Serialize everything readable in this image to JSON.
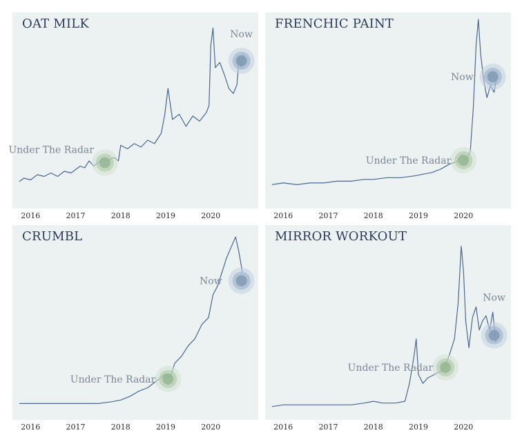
{
  "chart_data": [
    {
      "type": "line",
      "title": "OAT MILK",
      "x_ticks": [
        "2016",
        "2017",
        "2018",
        "2019",
        "2020"
      ],
      "xlim": [
        2015.75,
        2020.9
      ],
      "ylim": [
        0,
        100
      ],
      "color": "#4a6591",
      "series": [
        {
          "values": [
            [
              2015.75,
              6
            ],
            [
              2015.85,
              8
            ],
            [
              2016.0,
              7
            ],
            [
              2016.15,
              10
            ],
            [
              2016.3,
              9
            ],
            [
              2016.45,
              11
            ],
            [
              2016.6,
              9
            ],
            [
              2016.75,
              12
            ],
            [
              2016.9,
              11
            ],
            [
              2017.0,
              13
            ],
            [
              2017.1,
              15
            ],
            [
              2017.2,
              14
            ],
            [
              2017.3,
              18
            ],
            [
              2017.4,
              15
            ],
            [
              2017.5,
              17
            ],
            [
              2017.6,
              19
            ],
            [
              2017.7,
              18
            ],
            [
              2017.85,
              20
            ],
            [
              2017.95,
              18
            ],
            [
              2018.0,
              27
            ],
            [
              2018.15,
              25
            ],
            [
              2018.3,
              28
            ],
            [
              2018.45,
              26
            ],
            [
              2018.6,
              30
            ],
            [
              2018.75,
              28
            ],
            [
              2018.9,
              34
            ],
            [
              2018.98,
              45
            ],
            [
              2019.05,
              60
            ],
            [
              2019.15,
              42
            ],
            [
              2019.3,
              45
            ],
            [
              2019.45,
              38
            ],
            [
              2019.6,
              44
            ],
            [
              2019.75,
              41
            ],
            [
              2019.9,
              46
            ],
            [
              2019.96,
              50
            ],
            [
              2020.0,
              85
            ],
            [
              2020.05,
              95
            ],
            [
              2020.1,
              72
            ],
            [
              2020.2,
              75
            ],
            [
              2020.3,
              68
            ],
            [
              2020.4,
              60
            ],
            [
              2020.5,
              57
            ],
            [
              2020.58,
              62
            ],
            [
              2020.63,
              78
            ],
            [
              2020.68,
              72
            ],
            [
              2020.72,
              80
            ]
          ]
        }
      ],
      "annotations": [
        {
          "label": "Under The Radar",
          "x": 2017.65,
          "y": 17,
          "color": "green"
        },
        {
          "label": "Now",
          "x": 2020.68,
          "y": 76,
          "color": "blue"
        }
      ]
    },
    {
      "type": "line",
      "title": "FRENCHIC PAINT",
      "x_ticks": [
        "2016",
        "2017",
        "2018",
        "2019",
        "2020"
      ],
      "xlim": [
        2015.75,
        2020.9
      ],
      "ylim": [
        0,
        100
      ],
      "color": "#4a6591",
      "series": [
        {
          "values": [
            [
              2015.75,
              5
            ],
            [
              2016.0,
              6
            ],
            [
              2016.3,
              5
            ],
            [
              2016.6,
              6
            ],
            [
              2016.9,
              6
            ],
            [
              2017.2,
              7
            ],
            [
              2017.5,
              7
            ],
            [
              2017.8,
              8
            ],
            [
              2018.0,
              8
            ],
            [
              2018.3,
              9
            ],
            [
              2018.6,
              9
            ],
            [
              2018.9,
              10
            ],
            [
              2019.1,
              11
            ],
            [
              2019.3,
              12
            ],
            [
              2019.5,
              14
            ],
            [
              2019.7,
              17
            ],
            [
              2019.85,
              18
            ],
            [
              2019.95,
              22
            ],
            [
              2020.05,
              19
            ],
            [
              2020.15,
              24
            ],
            [
              2020.22,
              50
            ],
            [
              2020.28,
              85
            ],
            [
              2020.33,
              100
            ],
            [
              2020.38,
              80
            ],
            [
              2020.45,
              65
            ],
            [
              2020.52,
              55
            ],
            [
              2020.6,
              62
            ],
            [
              2020.68,
              58
            ],
            [
              2020.72,
              65
            ]
          ]
        }
      ],
      "annotations": [
        {
          "label": "Under The Radar",
          "x": 2020.0,
          "y": 19,
          "color": "green"
        },
        {
          "label": "Now",
          "x": 2020.65,
          "y": 67,
          "color": "blue"
        }
      ]
    },
    {
      "type": "line",
      "title": "CRUMBL",
      "x_ticks": [
        "2016",
        "2017",
        "2018",
        "2019",
        "2020"
      ],
      "xlim": [
        2015.75,
        2020.9
      ],
      "ylim": [
        0,
        100
      ],
      "color": "#4a6591",
      "series": [
        {
          "values": [
            [
              2015.75,
              3
            ],
            [
              2016.0,
              3
            ],
            [
              2016.3,
              3
            ],
            [
              2016.6,
              3
            ],
            [
              2016.9,
              3
            ],
            [
              2017.2,
              3
            ],
            [
              2017.5,
              3
            ],
            [
              2017.8,
              4
            ],
            [
              2018.0,
              5
            ],
            [
              2018.2,
              7
            ],
            [
              2018.4,
              10
            ],
            [
              2018.6,
              12
            ],
            [
              2018.8,
              16
            ],
            [
              2019.0,
              20
            ],
            [
              2019.1,
              18
            ],
            [
              2019.2,
              26
            ],
            [
              2019.35,
              30
            ],
            [
              2019.5,
              36
            ],
            [
              2019.65,
              40
            ],
            [
              2019.8,
              48
            ],
            [
              2019.95,
              52
            ],
            [
              2020.05,
              65
            ],
            [
              2020.15,
              70
            ],
            [
              2020.25,
              78
            ],
            [
              2020.35,
              86
            ],
            [
              2020.45,
              92
            ],
            [
              2020.55,
              98
            ],
            [
              2020.62,
              90
            ],
            [
              2020.7,
              78
            ]
          ]
        }
      ],
      "annotations": [
        {
          "label": "Under The Radar",
          "x": 2019.05,
          "y": 17,
          "color": "green"
        },
        {
          "label": "Now",
          "x": 2020.68,
          "y": 73,
          "color": "blue"
        }
      ]
    },
    {
      "type": "line",
      "title": "MIRROR WORKOUT",
      "x_ticks": [
        "2016",
        "2017",
        "2018",
        "2019",
        "2020"
      ],
      "xlim": [
        2015.75,
        2020.9
      ],
      "ylim": [
        0,
        100
      ],
      "color": "#4a6591",
      "series": [
        {
          "values": [
            [
              2015.75,
              2
            ],
            [
              2016.0,
              3
            ],
            [
              2016.5,
              3
            ],
            [
              2017.0,
              3
            ],
            [
              2017.5,
              3
            ],
            [
              2017.8,
              4
            ],
            [
              2018.0,
              5
            ],
            [
              2018.2,
              4
            ],
            [
              2018.5,
              4
            ],
            [
              2018.7,
              5
            ],
            [
              2018.8,
              15
            ],
            [
              2018.9,
              30
            ],
            [
              2018.95,
              40
            ],
            [
              2019.0,
              20
            ],
            [
              2019.1,
              15
            ],
            [
              2019.2,
              18
            ],
            [
              2019.35,
              20
            ],
            [
              2019.5,
              22
            ],
            [
              2019.6,
              25
            ],
            [
              2019.7,
              32
            ],
            [
              2019.8,
              40
            ],
            [
              2019.88,
              60
            ],
            [
              2019.95,
              92
            ],
            [
              2020.0,
              78
            ],
            [
              2020.05,
              50
            ],
            [
              2020.12,
              35
            ],
            [
              2020.2,
              52
            ],
            [
              2020.28,
              58
            ],
            [
              2020.35,
              45
            ],
            [
              2020.42,
              50
            ],
            [
              2020.5,
              53
            ],
            [
              2020.58,
              45
            ],
            [
              2020.65,
              55
            ],
            [
              2020.72,
              38
            ]
          ]
        }
      ],
      "annotations": [
        {
          "label": "Under The Radar",
          "x": 2019.6,
          "y": 24,
          "color": "green"
        },
        {
          "label": "Now",
          "x": 2020.68,
          "y": 42,
          "color": "blue"
        }
      ]
    }
  ]
}
